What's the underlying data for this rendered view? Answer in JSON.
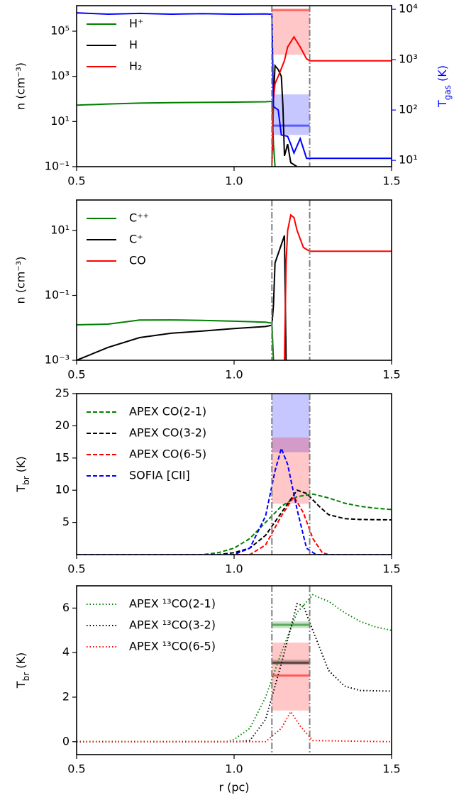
{
  "chart_data": [
    {
      "type": "line",
      "yscale": "log",
      "ylabel": "n (cm⁻³)",
      "y2label": [
        "T",
        "gas",
        " (K)"
      ],
      "y2color": "#0000ff",
      "xlim": [
        0.5,
        1.5
      ],
      "xticks": [
        0.5,
        {
          "value": 1,
          "label": "1.0"
        },
        1.5
      ],
      "ylim": [
        0.1,
        1350000
      ],
      "yticks": [
        {
          "value": 0.1,
          "label": "10⁻¹"
        },
        {
          "value": 10,
          "label": "10¹"
        },
        {
          "value": 1000,
          "label": "10³"
        },
        {
          "value": 100000,
          "label": "10⁵"
        }
      ],
      "y2lim": [
        7.5,
        11800
      ],
      "y2ticks": [
        {
          "value": 10,
          "label": "10¹"
        },
        {
          "value": 100,
          "label": "10²"
        },
        {
          "value": 1000,
          "label": "10³"
        },
        {
          "value": 10000,
          "label": "10⁴"
        }
      ],
      "vlines": [
        1.12,
        1.24
      ],
      "bands": [
        {
          "x": [
            1.12,
            1.24
          ],
          "y": [
            1250,
            9700
          ],
          "color": "#ff0000",
          "axis": "y2"
        },
        {
          "x": [
            1.12,
            1.24
          ],
          "y": [
            32,
            204
          ],
          "color": "#0000ff",
          "axis": "y2"
        }
      ],
      "hlines": [
        {
          "x": [
            1.12,
            1.24
          ],
          "y": 9700,
          "color": "#ff0000",
          "axis": "y2"
        },
        {
          "x": [
            1.12,
            1.24
          ],
          "y": 49,
          "color": "#0000ff",
          "axis": "y2"
        }
      ],
      "series": [
        {
          "name": "H⁺",
          "color": "#008000",
          "linestyle": "solid",
          "x": [
            0.5,
            0.6,
            0.7,
            0.8,
            0.9,
            1.0,
            1.1,
            1.12,
            1.125,
            1.13
          ],
          "values": [
            53,
            60,
            65,
            68,
            70,
            72,
            75,
            78,
            1,
            0.1
          ]
        },
        {
          "name": "H",
          "color": "#000000",
          "linestyle": "solid",
          "x": [
            1.12,
            1.125,
            1.13,
            1.14,
            1.15,
            1.155,
            1.16,
            1.17,
            1.18,
            1.2
          ],
          "values": [
            0.1,
            100,
            3000,
            2000,
            1000,
            50,
            0.3,
            1,
            0.15,
            0.1
          ]
        },
        {
          "name": "H₂",
          "color": "#ff0000",
          "linestyle": "solid",
          "x": [
            1.12,
            1.125,
            1.13,
            1.14,
            1.16,
            1.17,
            1.19,
            1.21,
            1.23,
            1.24,
            1.5
          ],
          "values": [
            0.1,
            100,
            480,
            1000,
            5000,
            20000,
            56000,
            20000,
            6000,
            4900,
            4900
          ]
        },
        {
          "color": "#0000ff",
          "linestyle": "solid",
          "axis": "y2",
          "x": [
            0.5,
            0.6,
            0.7,
            0.8,
            0.9,
            1.0,
            1.1,
            1.12,
            1.125,
            1.14,
            1.15,
            1.17,
            1.18,
            1.19,
            1.21,
            1.23,
            1.5
          ],
          "values": [
            8500,
            8000,
            8300,
            8000,
            8200,
            8000,
            8100,
            8000,
            117,
            100,
            32,
            30,
            21,
            14,
            27,
            11,
            11
          ]
        }
      ]
    },
    {
      "type": "line",
      "yscale": "log",
      "ylabel": "n (cm⁻³)",
      "xlim": [
        0.5,
        1.5
      ],
      "xticks": [
        0.5,
        {
          "value": 1,
          "label": "1.0"
        },
        1.5
      ],
      "ylim": [
        0.001,
        87
      ],
      "yticks": [
        {
          "value": 0.001,
          "label": "10⁻³"
        },
        {
          "value": 0.1,
          "label": "10⁻¹"
        },
        {
          "value": 10,
          "label": "10¹"
        }
      ],
      "vlines": [
        1.12,
        1.24
      ],
      "series": [
        {
          "name": "C⁺⁺",
          "color": "#008000",
          "linestyle": "solid",
          "x": [
            0.5,
            0.6,
            0.7,
            0.8,
            0.9,
            1.0,
            1.1,
            1.12,
            1.125
          ],
          "values": [
            0.0124,
            0.013,
            0.0174,
            0.0175,
            0.017,
            0.016,
            0.015,
            0.014,
            0.001
          ]
        },
        {
          "name": "C⁺",
          "color": "#000000",
          "linestyle": "solid",
          "x": [
            0.5,
            0.6,
            0.7,
            0.8,
            0.9,
            1.0,
            1.1,
            1.12,
            1.125,
            1.13,
            1.16,
            1.165
          ],
          "values": [
            0.001,
            0.0025,
            0.005,
            0.0068,
            0.008,
            0.0095,
            0.011,
            0.012,
            0.05,
            1,
            7,
            0.001
          ]
        },
        {
          "name": "CO",
          "color": "#ff0000",
          "linestyle": "solid",
          "x": [
            1.16,
            1.165,
            1.17,
            1.18,
            1.19,
            1.2,
            1.22,
            1.24,
            1.5
          ],
          "values": [
            0.001,
            1,
            10,
            30,
            25,
            10,
            3,
            2.3,
            2.3
          ]
        }
      ]
    },
    {
      "type": "line",
      "yscale": "linear",
      "ylabel": [
        "T",
        "br",
        " (K)"
      ],
      "xlim": [
        0.5,
        1.5
      ],
      "xticks": [
        0.5,
        {
          "value": 1,
          "label": "1.0"
        },
        1.5
      ],
      "ylim": [
        0,
        25
      ],
      "yticks": [
        5,
        10,
        15,
        20,
        25
      ],
      "vlines": [
        1.12,
        1.24
      ],
      "bands": [
        {
          "x": [
            1.12,
            1.24
          ],
          "y": [
            15.9,
            25
          ],
          "color": "#0000ff"
        },
        {
          "x": [
            1.12,
            1.24
          ],
          "y": [
            7.9,
            18.2
          ],
          "color": "#ff0000"
        }
      ],
      "series": [
        {
          "name": "APEX CO(2-1)",
          "color": "#008000",
          "linestyle": "dashed",
          "x": [
            0.5,
            0.9,
            0.95,
            1.0,
            1.05,
            1.1,
            1.15,
            1.2,
            1.25,
            1.3,
            1.35,
            1.4,
            1.45,
            1.5
          ],
          "values": [
            0,
            0,
            0.3,
            1,
            2.5,
            5,
            7.5,
            9,
            9.4,
            8.8,
            8,
            7.5,
            7.2,
            7.0
          ]
        },
        {
          "name": "APEX CO(3-2)",
          "color": "#000000",
          "linestyle": "dashed",
          "x": [
            0.5,
            0.95,
            1.0,
            1.05,
            1.1,
            1.15,
            1.2,
            1.23,
            1.27,
            1.3,
            1.35,
            1.4,
            1.5
          ],
          "values": [
            0,
            0,
            0.3,
            1,
            3,
            6.5,
            10,
            9.5,
            7.5,
            6.2,
            5.6,
            5.45,
            5.4
          ]
        },
        {
          "name": "APEX CO(6-5)",
          "color": "#ff0000",
          "linestyle": "dashed",
          "x": [
            0.5,
            1.05,
            1.1,
            1.15,
            1.19,
            1.22,
            1.25,
            1.28,
            1.3,
            1.5
          ],
          "values": [
            0,
            0,
            1.5,
            6,
            9,
            6.5,
            2.5,
            0.3,
            0,
            0
          ]
        },
        {
          "name": "SOFIA [CII]",
          "color": "#0000ff",
          "linestyle": "dashed",
          "x": [
            0.5,
            1.0,
            1.05,
            1.1,
            1.13,
            1.15,
            1.17,
            1.2,
            1.23,
            1.26,
            1.5
          ],
          "values": [
            0,
            0,
            1,
            6,
            13,
            16.5,
            14,
            7,
            1,
            0,
            0
          ]
        }
      ]
    },
    {
      "type": "line",
      "yscale": "linear",
      "ylabel": [
        "T",
        "br",
        " (K)"
      ],
      "xlabel": "r (pc)",
      "xlim": [
        0.5,
        1.5
      ],
      "xticks": [
        0.5,
        {
          "value": 1,
          "label": "1.0"
        },
        1.5
      ],
      "ylim": [
        -0.58,
        7.0
      ],
      "yticks": [
        0,
        2,
        4,
        6
      ],
      "vlines": [
        1.12,
        1.24
      ],
      "bands": [
        {
          "x": [
            1.12,
            1.24
          ],
          "y": [
            1.4,
            4.45
          ],
          "color": "#ff0000"
        },
        {
          "x": [
            1.12,
            1.24
          ],
          "y": [
            5.1,
            5.4
          ],
          "color": "#008000"
        },
        {
          "x": [
            1.12,
            1.24
          ],
          "y": [
            3.45,
            3.68
          ],
          "color": "#000000"
        }
      ],
      "hlines": [
        {
          "x": [
            1.12,
            1.24
          ],
          "y": 5.25,
          "color": "#008000"
        },
        {
          "x": [
            1.12,
            1.24
          ],
          "y": 3.55,
          "color": "#000000"
        },
        {
          "x": [
            1.12,
            1.24
          ],
          "y": 2.97,
          "color": "#ff0000"
        }
      ],
      "series": [
        {
          "name": "APEX ¹³CO(2-1)",
          "color": "#008000",
          "linestyle": "dotted",
          "x": [
            0.5,
            0.98,
            1.0,
            1.05,
            1.1,
            1.15,
            1.2,
            1.25,
            1.3,
            1.35,
            1.4,
            1.45,
            1.5
          ],
          "values": [
            0,
            0,
            0.1,
            0.6,
            2,
            4,
            5.8,
            6.6,
            6.3,
            5.8,
            5.4,
            5.15,
            5.0
          ]
        },
        {
          "name": "APEX ¹³CO(3-2)",
          "color": "#000000",
          "linestyle": "dotted",
          "x": [
            0.5,
            1.0,
            1.05,
            1.1,
            1.15,
            1.2,
            1.22,
            1.25,
            1.3,
            1.35,
            1.4,
            1.5
          ],
          "values": [
            0,
            0,
            0.05,
            1,
            3.5,
            6.2,
            6.1,
            5,
            3.2,
            2.5,
            2.3,
            2.27
          ]
        },
        {
          "name": "APEX ¹³CO(6-5)",
          "color": "#ff0000",
          "linestyle": "dotted",
          "x": [
            0.5,
            1.1,
            1.15,
            1.18,
            1.21,
            1.25,
            1.5
          ],
          "values": [
            0,
            0,
            0.6,
            1.35,
            0.7,
            0.05,
            0
          ]
        }
      ]
    }
  ]
}
